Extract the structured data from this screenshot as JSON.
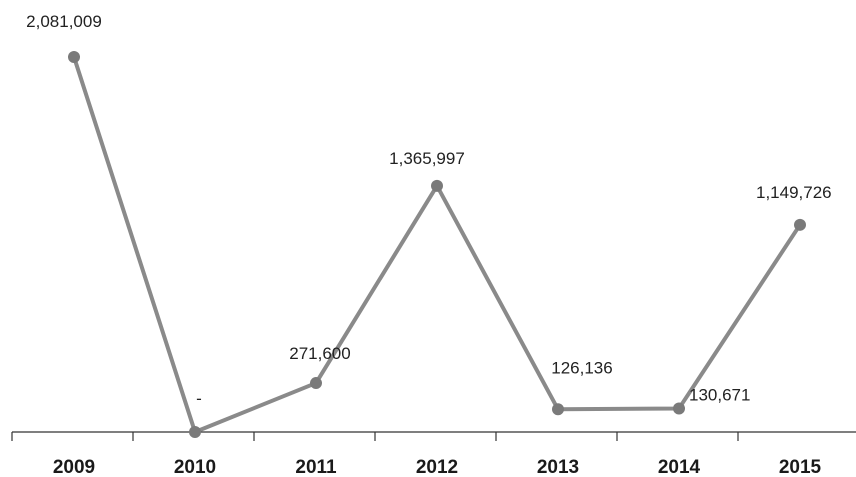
{
  "chart_data": {
    "type": "line",
    "title": "",
    "xlabel": "",
    "ylabel": "",
    "categories": [
      "2009",
      "2010",
      "2011",
      "2012",
      "2013",
      "2014",
      "2015"
    ],
    "series": [
      {
        "values": [
          2081009,
          0,
          271600,
          1365997,
          126136,
          130671,
          1149726
        ],
        "labels": [
          "2,081,009",
          "-",
          "271,600",
          "1,365,997",
          "126,136",
          "130,671",
          "1,149,726"
        ]
      }
    ],
    "ylim": [
      0,
      2081009
    ],
    "grid": false,
    "legend": "none",
    "colors": {
      "line": "#8a8a8a",
      "marker": "#7a7a7a"
    }
  }
}
